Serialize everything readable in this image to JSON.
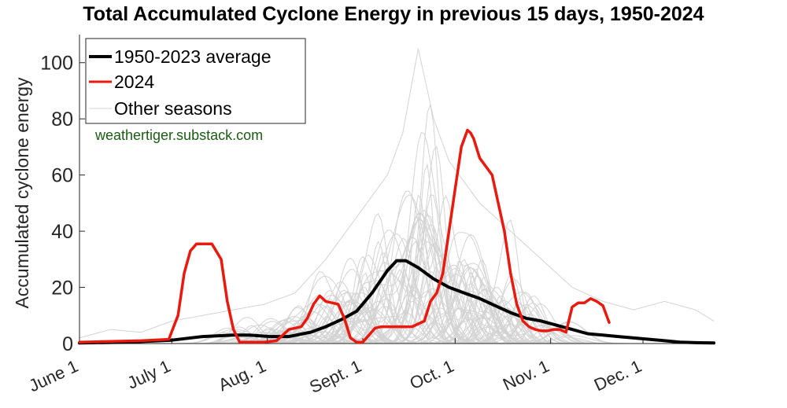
{
  "chart_data": {
    "type": "line",
    "title": "Total Accumulated Cyclone Energy in previous 15 days, 1950-2024",
    "xlabel": "",
    "ylabel": "Accumulated cyclone energy",
    "xlim": [
      0,
      206
    ],
    "ylim": [
      0,
      110
    ],
    "y_ticks": [
      0,
      20,
      40,
      60,
      80,
      100
    ],
    "x_ticks": [
      {
        "label": "June 1",
        "day": 0
      },
      {
        "label": "July 1",
        "day": 30
      },
      {
        "label": "Aug. 1",
        "day": 61
      },
      {
        "label": "Sept. 1",
        "day": 92
      },
      {
        "label": "Oct. 1",
        "day": 122
      },
      {
        "label": "Nov. 1",
        "day": 153
      },
      {
        "label": "Dec. 1",
        "day": 183
      }
    ],
    "grid": false,
    "legend_position": "top-left",
    "annotation": "weathertiger.substack.com",
    "colors": {
      "average": "#000000",
      "year_2024": "#e8190e",
      "other": "#d3d3d3",
      "annotation": "#1a5c12"
    },
    "series": [
      {
        "name": "1950-2023 average",
        "x": [
          0,
          15,
          30,
          40,
          50,
          55,
          62,
          68,
          75,
          80,
          85,
          90,
          95,
          100,
          103,
          106,
          110,
          115,
          120,
          125,
          130,
          135,
          140,
          145,
          150,
          155,
          160,
          165,
          170,
          175,
          180,
          185,
          190,
          195,
          200,
          206
        ],
        "values": [
          0.2,
          0.5,
          1.2,
          2.5,
          3,
          3,
          2.5,
          2.5,
          4,
          6,
          8.5,
          11.5,
          18,
          26,
          29.5,
          29.5,
          27,
          23,
          20,
          18,
          16,
          13.5,
          11,
          9,
          8,
          6.5,
          5,
          3.5,
          3,
          2.5,
          2,
          1.5,
          1,
          0.5,
          0.3,
          0.2
        ]
      },
      {
        "name": "2024",
        "x": [
          0,
          20,
          29,
          32,
          34,
          36,
          38,
          40,
          43,
          46,
          48,
          50,
          52,
          56,
          60,
          64,
          68,
          70,
          72,
          74,
          76,
          78,
          80,
          82,
          84,
          86,
          88,
          90,
          92,
          94,
          96,
          98,
          100,
          102,
          104,
          108,
          112,
          114,
          116,
          118,
          120,
          122,
          124,
          126,
          127,
          128,
          130,
          132,
          134,
          136,
          138,
          140,
          142,
          144,
          146,
          148,
          150,
          152,
          154,
          156,
          158,
          160,
          162,
          164,
          166,
          168,
          170,
          172
        ],
        "values": [
          0.5,
          1,
          1.5,
          10,
          25,
          33,
          35.5,
          35.5,
          35.5,
          30,
          15,
          5,
          0.5,
          0.5,
          0.5,
          1,
          5,
          5.5,
          6,
          9,
          14,
          17,
          15,
          14.5,
          14,
          9,
          2,
          0.5,
          0.5,
          3,
          5.5,
          6,
          6,
          6,
          6,
          6,
          8,
          15,
          18,
          25,
          40,
          55,
          70,
          76,
          75,
          73,
          66,
          63,
          60,
          50,
          40,
          25,
          14,
          8,
          6,
          5,
          4.5,
          4.5,
          5,
          5,
          4,
          13,
          14.5,
          14.5,
          16,
          15,
          13.5,
          7.5
        ]
      },
      {
        "name": "Other seasons",
        "x": [
          0,
          10,
          20,
          30,
          40,
          50,
          60,
          70,
          80,
          90,
          100,
          105,
          110,
          115,
          120,
          130,
          140,
          150,
          160,
          170,
          180,
          190,
          200,
          206
        ],
        "values": [
          2,
          5,
          4,
          8,
          10,
          12,
          14,
          18,
          30,
          45,
          60,
          75,
          105,
          80,
          65,
          50,
          40,
          30,
          20,
          15,
          12,
          15,
          12,
          8
        ]
      }
    ]
  }
}
